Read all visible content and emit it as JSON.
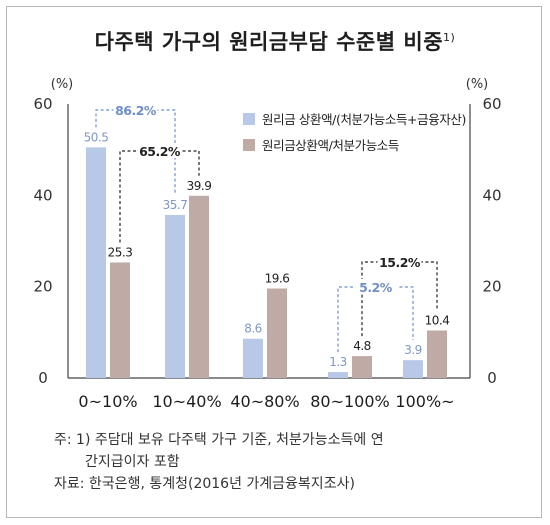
{
  "chart_data": {
    "type": "bar",
    "title": "다주택 가구의 원리금부담 수준별 비중",
    "title_note": "1)",
    "categories": [
      "0~10%",
      "10~40%",
      "40~80%",
      "80~100%",
      "100%~"
    ],
    "series": [
      {
        "name": "원리금 상환액/(처분가능소득+금융자산)",
        "values": [
          50.5,
          35.7,
          8.6,
          1.3,
          3.9
        ],
        "color": "#b7c9e6"
      },
      {
        "name": "원리금상환액/처분가능소득",
        "values": [
          25.3,
          39.9,
          19.6,
          4.8,
          10.4
        ],
        "color": "#bfaaa5"
      }
    ],
    "ylim": [
      0,
      60
    ],
    "yticks": [
      0,
      20,
      40,
      60
    ],
    "yunit_left": "(%)",
    "yunit_right": "(%)",
    "legend_position": "top-right",
    "annotations": [
      {
        "text": "86.2%",
        "series": 0,
        "from": 0,
        "to": 1,
        "color": "#6f8fc9"
      },
      {
        "text": "65.2%",
        "series": 1,
        "from": 0,
        "to": 1,
        "color": "#222222"
      },
      {
        "text": "15.2%",
        "series": 1,
        "from": 3,
        "to": 4,
        "color": "#222222"
      },
      {
        "text": "5.2%",
        "series": 0,
        "from": 3,
        "to": 4,
        "color": "#6f8fc9"
      }
    ]
  },
  "notes": {
    "line1": "주: 1) 주담대 보유 다주택 가구 기준, 처분가능소득에 연",
    "line2": "간지급이자 포함",
    "source": "자료: 한국은행, 통계청(2016년 가계금융복지조사)"
  }
}
